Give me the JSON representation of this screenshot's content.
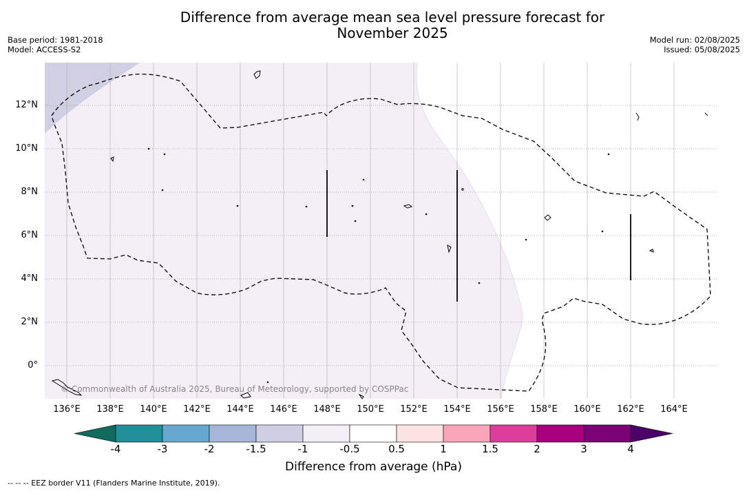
{
  "title_line1": "Difference from average mean sea level pressure forecast for",
  "title_line2": "November 2025",
  "base_period": "Base period: 1981-2018",
  "model": "Model: ACCESS-S2",
  "model_run": "Model run: 02/08/2025",
  "issued": "Issued: 05/08/2025",
  "lat_labels": [
    "12°N",
    "10°N",
    "8°N",
    "6°N",
    "4°N",
    "2°N",
    "0°"
  ],
  "lon_labels": [
    "136°E",
    "138°E",
    "140°E",
    "142°E",
    "144°E",
    "146°E",
    "148°E",
    "150°E",
    "152°E",
    "154°E",
    "156°E",
    "158°E",
    "160°E",
    "162°E",
    "164°E"
  ],
  "copyright": "© Commonwealth of Australia 2025, Bureau of Meteorology, supported by COSPPac",
  "colorbar": {
    "ticks": [
      "-4",
      "-3",
      "-2",
      "-1.5",
      "-1",
      "-0.5",
      "0.5",
      "1",
      "1.5",
      "2",
      "3",
      "4"
    ],
    "colors": [
      "#0f6b5e",
      "#218f99",
      "#66a8d0",
      "#a6b6d8",
      "#cfcfe4",
      "#f4eef6",
      "#ffffff",
      "#fde2e2",
      "#f9a4b8",
      "#dc3e9c",
      "#a8017d",
      "#7c0375",
      "#4a0266"
    ],
    "label": "Difference from average (hPa)"
  },
  "legend_note": "--  --  -- EEZ border V11 (Flanders Marine Institute, 2019)."
}
